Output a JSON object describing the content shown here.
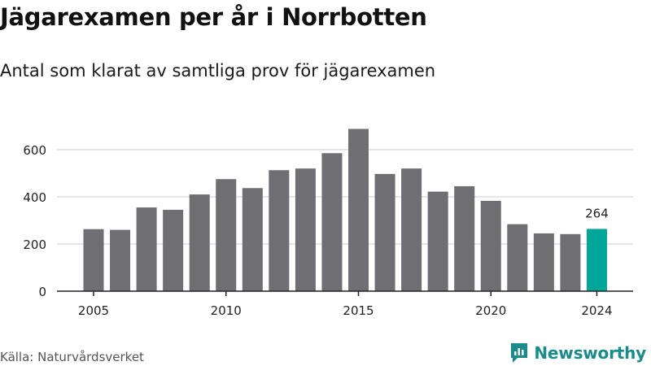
{
  "title": "Jägarexamen per år i Norrbotten",
  "subtitle": "Antal som klarat av samtliga prov för jägarexamen",
  "source": "Källa: Naturvårdsverket",
  "brand": "Newsworthy",
  "colors": {
    "bar": "#6e6e73",
    "highlight": "#00a699",
    "grid": "#dddddd",
    "brand": "#1b8a8a"
  },
  "chart_data": {
    "type": "bar",
    "x": [
      2005,
      2006,
      2007,
      2008,
      2009,
      2010,
      2011,
      2012,
      2013,
      2014,
      2015,
      2016,
      2017,
      2018,
      2019,
      2020,
      2021,
      2022,
      2023,
      2024
    ],
    "values": [
      263,
      260,
      355,
      345,
      410,
      475,
      437,
      513,
      520,
      585,
      688,
      497,
      520,
      422,
      445,
      383,
      284,
      245,
      242,
      264
    ],
    "highlight": 2024,
    "highlight_label": "264",
    "x_ticks": [
      2005,
      2010,
      2015,
      2020,
      2024
    ],
    "y_ticks": [
      0,
      200,
      400,
      600
    ],
    "ylim": [
      0,
      700
    ],
    "grid": true
  }
}
